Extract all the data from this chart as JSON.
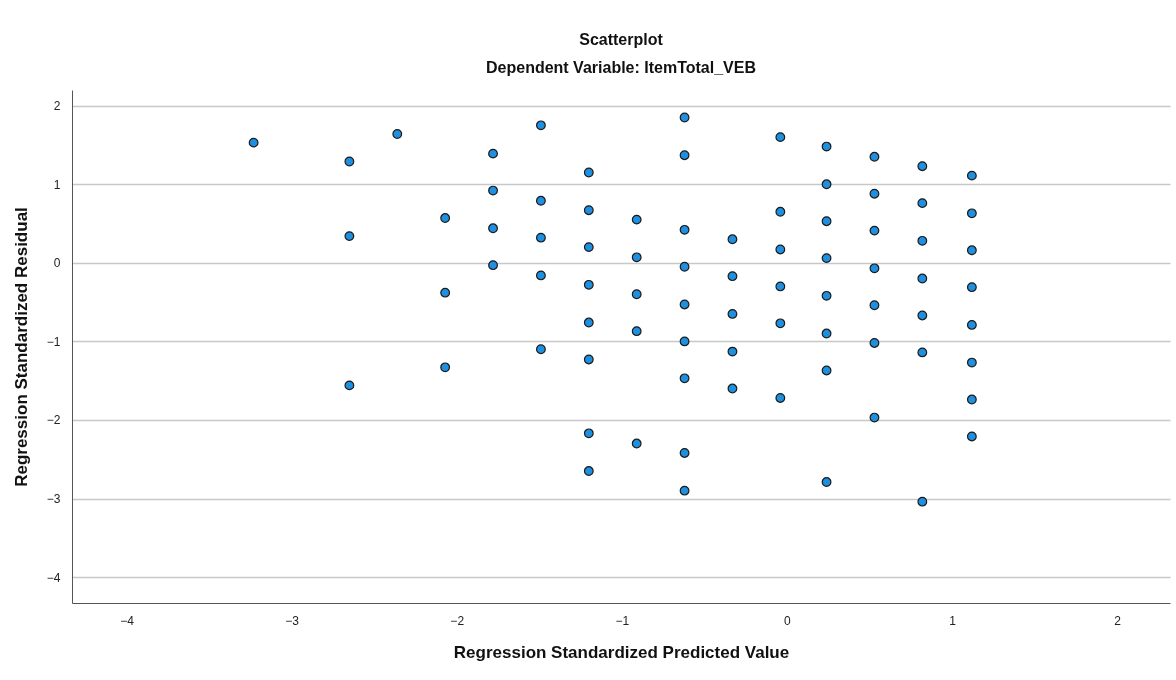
{
  "chart_data": {
    "type": "scatter",
    "title": "Scatterplot",
    "subtitle": "Dependent Variable: ItemTotal_VEB",
    "xlabel": "Regression Standardized Predicted Value",
    "ylabel": "Regression Standardized Residual",
    "xlim": [
      -4.33,
      2.32
    ],
    "xticks": [
      -4,
      -3,
      -2,
      -1,
      0,
      1,
      2
    ],
    "ylim": [
      -4.33,
      2.2
    ],
    "yticks": [
      -4,
      -3,
      -2,
      -1,
      0,
      1,
      2
    ],
    "grid": "y",
    "marker": "circle",
    "series": [
      {
        "color": "#1f8fe0",
        "x": [
          -3.23,
          -2.65,
          -2.65,
          -2.65,
          -2.36,
          -2.07,
          -2.07,
          -2.07,
          -1.78,
          -1.78,
          -1.78,
          -1.78,
          -1.49,
          -1.49,
          -1.49,
          -1.49,
          -1.49,
          -1.2,
          -1.2,
          -1.2,
          -1.2,
          -1.2,
          -1.2,
          -1.2,
          -1.2,
          -0.91,
          -0.91,
          -0.91,
          -0.91,
          -0.91,
          -0.62,
          -0.62,
          -0.62,
          -0.62,
          -0.62,
          -0.62,
          -0.62,
          -0.62,
          -0.62,
          -0.33,
          -0.33,
          -0.33,
          -0.33,
          -0.33,
          -0.04,
          -0.04,
          -0.04,
          -0.04,
          -0.04,
          -0.04,
          0.24,
          0.24,
          0.24,
          0.24,
          0.24,
          0.24,
          0.24,
          0.24,
          0.53,
          0.53,
          0.53,
          0.53,
          0.53,
          0.53,
          0.53,
          0.82,
          0.82,
          0.82,
          0.82,
          0.82,
          0.82,
          0.82,
          1.12,
          1.12,
          1.12,
          1.12,
          1.12,
          1.12,
          1.12,
          1.12
        ],
        "values": [
          1.53,
          1.29,
          0.34,
          -1.56,
          1.64,
          0.57,
          -0.38,
          -1.33,
          1.39,
          0.92,
          0.44,
          -0.03,
          1.75,
          0.79,
          0.32,
          -0.16,
          -1.1,
          1.15,
          0.67,
          0.2,
          -0.28,
          -0.76,
          -1.23,
          -2.17,
          -2.65,
          0.55,
          0.07,
          -0.4,
          -0.87,
          -2.3,
          1.85,
          1.37,
          0.42,
          -0.05,
          -0.53,
          -1.0,
          -1.47,
          -2.42,
          -2.9,
          0.3,
          -0.17,
          -0.65,
          -1.13,
          -1.6,
          1.6,
          0.65,
          0.17,
          -0.3,
          -0.77,
          -1.72,
          1.48,
          1.0,
          0.53,
          0.06,
          -0.42,
          -0.9,
          -1.37,
          -2.79,
          1.35,
          0.88,
          0.41,
          -0.07,
          -0.54,
          -1.02,
          -1.97,
          1.23,
          0.76,
          0.28,
          -0.2,
          -0.67,
          -1.14,
          -3.04,
          1.11,
          0.63,
          0.16,
          -0.31,
          -0.79,
          -1.27,
          -1.74,
          -2.21
        ]
      }
    ]
  }
}
